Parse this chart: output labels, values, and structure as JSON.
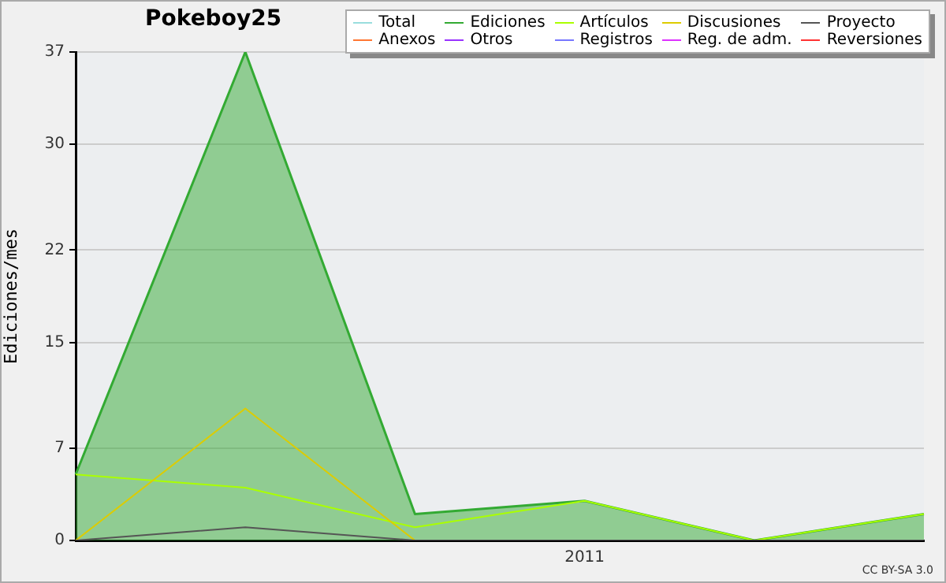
{
  "chart_data": {
    "type": "line",
    "title": "Pokeboy25",
    "ylabel": "Ediciones/mes",
    "categories": [
      null,
      null,
      null,
      "2011",
      null,
      null
    ],
    "ylim": [
      0,
      37
    ],
    "yticks": [
      0,
      7,
      15,
      22,
      30,
      37
    ],
    "grid": "y",
    "legend": "top right",
    "annotations": [
      "CC BY-SA 3.0"
    ],
    "series": [
      {
        "name": "Total",
        "color": "#99dddd",
        "values": [
          null,
          null,
          null,
          null,
          null,
          null
        ]
      },
      {
        "name": "Ediciones",
        "type": "area",
        "color": "#33aa33",
        "values": [
          5,
          37,
          2,
          3,
          0,
          2
        ]
      },
      {
        "name": "Artículos",
        "color": "#aaff00",
        "values": [
          5,
          4,
          1,
          3,
          0,
          2
        ]
      },
      {
        "name": "Discusiones",
        "color": "#ddcc00",
        "values": [
          0,
          10,
          0,
          0,
          null,
          null
        ]
      },
      {
        "name": "Proyecto",
        "color": "#555555",
        "values": [
          0,
          1,
          0,
          0,
          0,
          0
        ]
      },
      {
        "name": "Anexos",
        "color": "#ff7733",
        "values": [
          null,
          null,
          null,
          null,
          null,
          null
        ]
      },
      {
        "name": "Otros",
        "color": "#9933ff",
        "values": [
          null,
          null,
          null,
          null,
          null,
          null
        ]
      },
      {
        "name": "Registros",
        "color": "#7777ff",
        "values": [
          null,
          null,
          null,
          null,
          null,
          null
        ]
      },
      {
        "name": "Reg. de adm.",
        "color": "#dd33ff",
        "values": [
          null,
          null,
          null,
          null,
          null,
          null
        ]
      },
      {
        "name": "Reversiones",
        "color": "#ff3333",
        "values": [
          null,
          null,
          null,
          null,
          null,
          null
        ]
      }
    ]
  }
}
